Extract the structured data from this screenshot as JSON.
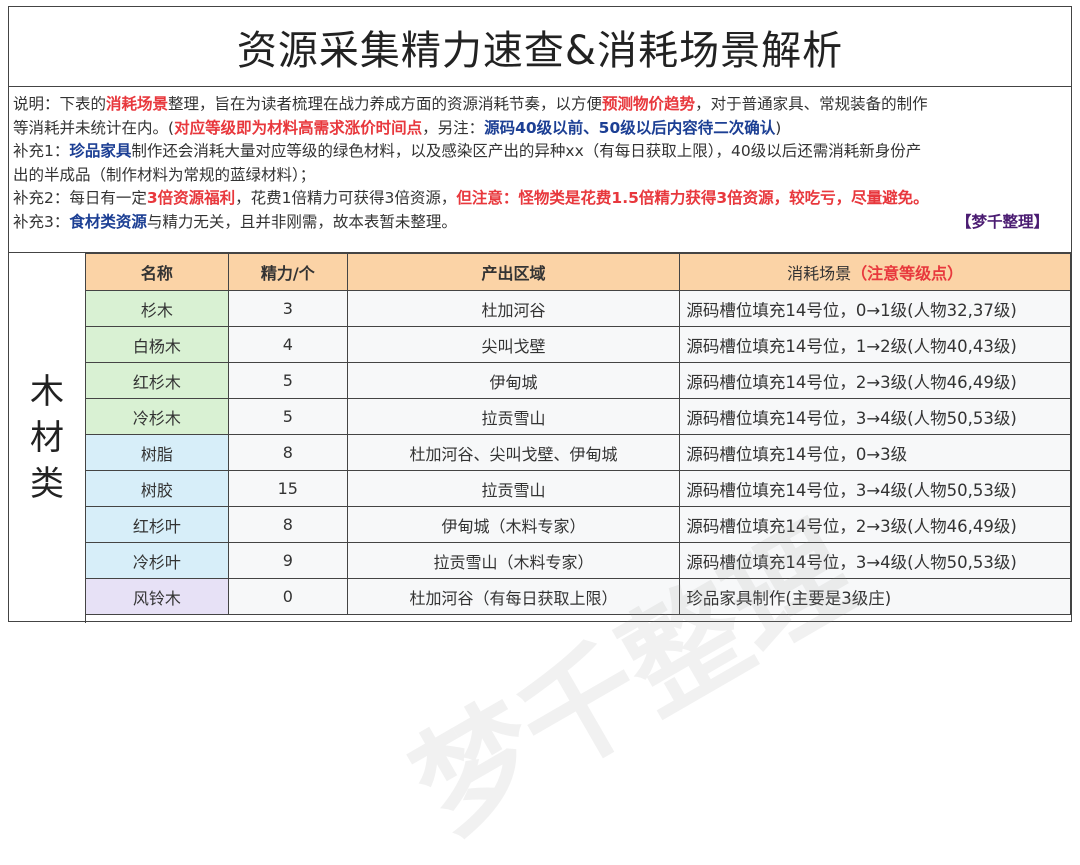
{
  "title": "资源采集精力速查&消耗场景解析",
  "notes": [
    [
      {
        "t": "说明：下表的"
      },
      {
        "t": "消耗场景",
        "c": "red"
      },
      {
        "t": "整理，旨在为读者梳理在战力养成方面的资源消耗节奏，以方便"
      },
      {
        "t": "预测物价趋势",
        "c": "red"
      },
      {
        "t": "，对于普通家具、常规装备的制作"
      }
    ],
    [
      {
        "t": "等消耗并未统计在内。("
      },
      {
        "t": "对应等级即为材料高需求涨价时间点",
        "c": "red"
      },
      {
        "t": "，另注："
      },
      {
        "t": "源码40级以前、50级以后内容待二次确认",
        "c": "blue"
      },
      {
        "t": ")"
      }
    ],
    [
      {
        "t": "补充1："
      },
      {
        "t": "珍品家具",
        "c": "blue"
      },
      {
        "t": "制作还会消耗大量对应等级的绿色材料，以及感染区产出的异种xx（有每日获取上限），40级以后还需消耗新身份产"
      }
    ],
    [
      {
        "t": "出的半成品（制作材料为常规的蓝绿材料）；"
      }
    ],
    [
      {
        "t": "补充2：每日有一定"
      },
      {
        "t": "3倍资源福利",
        "c": "red"
      },
      {
        "t": "，花费1倍精力可获得3倍资源，"
      },
      {
        "t": "但注意：怪物类是花费1.5倍精力获得3倍资源，较吃亏，尽量避免。",
        "c": "red"
      }
    ],
    [
      {
        "t": "补充3："
      },
      {
        "t": "食材类资源",
        "c": "blue"
      },
      {
        "t": "与精力无关，且并非刚需，故本表暂未整理。"
      },
      {
        "t": "【梦千整理】",
        "c": "purple sig"
      }
    ]
  ],
  "category": [
    "木",
    "材",
    "类"
  ],
  "watermark": "梦千整理",
  "table": {
    "headers": {
      "name": "名称",
      "energy": "精力/个",
      "region": "产出区域",
      "scene": "消耗场景",
      "scene_note": "（注意等级点）"
    },
    "rows": [
      {
        "name": "杉木",
        "energy": "3",
        "region": "杜加河谷",
        "scene": "源码槽位填充14号位，0→1级(人物32,37级)",
        "group": "green"
      },
      {
        "name": "白杨木",
        "energy": "4",
        "region": "尖叫戈壁",
        "scene": "源码槽位填充14号位，1→2级(人物40,43级)",
        "group": "green"
      },
      {
        "name": "红杉木",
        "energy": "5",
        "region": "伊甸城",
        "scene": "源码槽位填充14号位，2→3级(人物46,49级)",
        "group": "green"
      },
      {
        "name": "冷杉木",
        "energy": "5",
        "region": "拉贡雪山",
        "scene": "源码槽位填充14号位，3→4级(人物50,53级)",
        "group": "green"
      },
      {
        "name": "树脂",
        "energy": "8",
        "region": "杜加河谷、尖叫戈壁、伊甸城",
        "scene": "源码槽位填充14号位，0→3级",
        "group": "blue"
      },
      {
        "name": "树胶",
        "energy": "15",
        "region": "拉贡雪山",
        "scene": "源码槽位填充14号位，3→4级(人物50,53级)",
        "group": "blue"
      },
      {
        "name": "红杉叶",
        "energy": "8",
        "region": "伊甸城（木料专家）",
        "scene": "源码槽位填充14号位，2→3级(人物46,49级)",
        "group": "blue"
      },
      {
        "name": "冷杉叶",
        "energy": "9",
        "region": "拉贡雪山（木料专家）",
        "scene": "源码槽位填充14号位，3→4级(人物50,53级)",
        "group": "blue"
      },
      {
        "name": "风铃木",
        "energy": "0",
        "region": "杜加河谷（有每日获取上限）",
        "scene": "珍品家具制作(主要是3级庄)",
        "group": "purple"
      }
    ]
  }
}
